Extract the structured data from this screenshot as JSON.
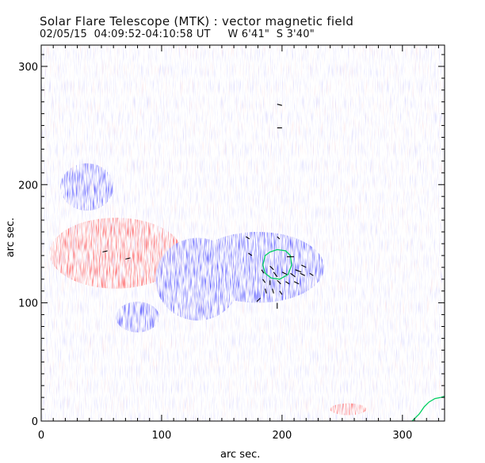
{
  "chart_data": {
    "type": "heatmap",
    "title": "Solar Flare Telescope (MTK) : vector magnetic field",
    "subtitle": "02/05/15  04:09:52-04:10:58 UT     W 6'41\"  S 3'40\"",
    "xlabel": "arc sec.",
    "ylabel": "arc sec.",
    "xlim": [
      0,
      335
    ],
    "ylim": [
      0,
      318
    ],
    "xticks": [
      0,
      100,
      200,
      300
    ],
    "yticks": [
      0,
      100,
      200,
      300
    ],
    "colors": {
      "positive": "#ff5050",
      "negative": "#4a4aff",
      "contour": "#00d060",
      "vector": "#000000",
      "axis": "#000000"
    },
    "regions": [
      {
        "name": "negative",
        "cx": 38,
        "cy": 198,
        "rx": 22,
        "ry": 20
      },
      {
        "name": "positive",
        "cx": 62,
        "cy": 142,
        "rx": 55,
        "ry": 30
      },
      {
        "name": "negative",
        "cx": 130,
        "cy": 120,
        "rx": 35,
        "ry": 35
      },
      {
        "name": "negative",
        "cx": 80,
        "cy": 88,
        "rx": 18,
        "ry": 13
      },
      {
        "name": "negative",
        "cx": 180,
        "cy": 130,
        "rx": 55,
        "ry": 30
      },
      {
        "name": "negative",
        "cx": 195,
        "cy": 132,
        "rx": 30,
        "ry": 25
      },
      {
        "name": "positive",
        "cx": 255,
        "cy": 10,
        "rx": 15,
        "ry": 5
      }
    ],
    "contours": [
      {
        "x": [
          190,
          196,
          203,
          207,
          208,
          205,
          198,
          191,
          186,
          184,
          186,
          190
        ],
        "y": [
          143,
          145,
          144,
          140,
          132,
          124,
          120,
          121,
          125,
          132,
          140,
          143
        ]
      },
      {
        "x": [
          308,
          314,
          318,
          322,
          327,
          332,
          335
        ],
        "y": [
          0,
          6,
          12,
          16,
          19,
          20,
          21
        ]
      }
    ],
    "vectors": [
      {
        "x": 196,
        "y": 268,
        "dx": 4,
        "dy": -1
      },
      {
        "x": 196,
        "y": 248,
        "dx": 4,
        "dy": 0
      },
      {
        "x": 170,
        "y": 156,
        "dx": 3,
        "dy": -2
      },
      {
        "x": 196,
        "y": 156,
        "dx": 2,
        "dy": -2
      },
      {
        "x": 172,
        "y": 142,
        "dx": 3,
        "dy": -2
      },
      {
        "x": 51,
        "y": 143,
        "dx": 4,
        "dy": 1
      },
      {
        "x": 70,
        "y": 137,
        "dx": 4,
        "dy": 1
      },
      {
        "x": 204,
        "y": 139,
        "dx": 6,
        "dy": 0
      },
      {
        "x": 216,
        "y": 132,
        "dx": 4,
        "dy": -2
      },
      {
        "x": 211,
        "y": 128,
        "dx": 5,
        "dy": -2
      },
      {
        "x": 190,
        "y": 131,
        "dx": 3,
        "dy": -3
      },
      {
        "x": 183,
        "y": 128,
        "dx": 2,
        "dy": -3
      },
      {
        "x": 193,
        "y": 126,
        "dx": 3,
        "dy": -4
      },
      {
        "x": 200,
        "y": 126,
        "dx": 4,
        "dy": -2
      },
      {
        "x": 207,
        "y": 125,
        "dx": 4,
        "dy": -3
      },
      {
        "x": 215,
        "y": 125,
        "dx": 4,
        "dy": -2
      },
      {
        "x": 223,
        "y": 125,
        "dx": 3,
        "dy": -2
      },
      {
        "x": 184,
        "y": 120,
        "dx": 2,
        "dy": -3
      },
      {
        "x": 190,
        "y": 119,
        "dx": 0,
        "dy": -4
      },
      {
        "x": 196,
        "y": 119,
        "dx": 3,
        "dy": -3
      },
      {
        "x": 203,
        "y": 118,
        "dx": 3,
        "dy": -2
      },
      {
        "x": 210,
        "y": 118,
        "dx": 4,
        "dy": -2
      },
      {
        "x": 186,
        "y": 112,
        "dx": 1,
        "dy": -4
      },
      {
        "x": 192,
        "y": 112,
        "dx": 1,
        "dy": -4
      },
      {
        "x": 198,
        "y": 110,
        "dx": 2,
        "dy": -3
      },
      {
        "x": 182,
        "y": 104,
        "dx": -3,
        "dy": -3
      },
      {
        "x": 196,
        "y": 100,
        "dx": 0,
        "dy": -5
      }
    ]
  }
}
